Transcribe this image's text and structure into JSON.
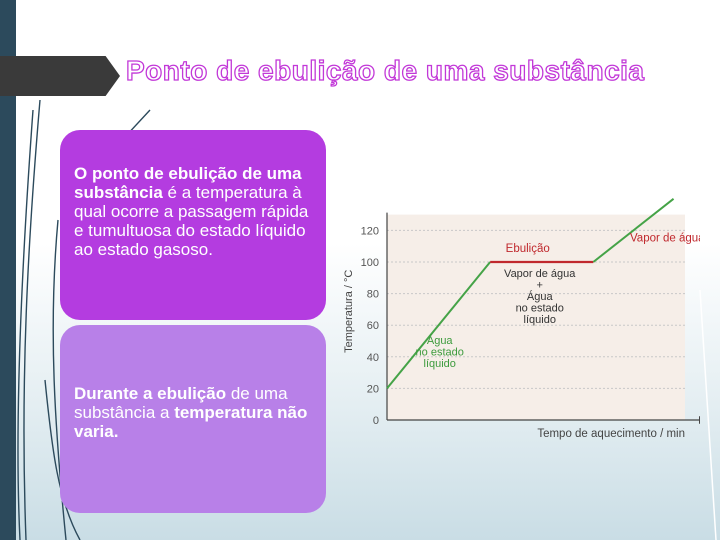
{
  "slide": {
    "title": "Ponto de ebulição de uma substância"
  },
  "box1": {
    "lead": "O ponto de ebulição de uma substância",
    "rest": " é a temperatura à qual ocorre a passagem rápida e tumultuosa do estado líquido ao estado gasoso."
  },
  "box2": {
    "part1": "Durante a ",
    "part2": "ebulição",
    "part3": " de uma substância a ",
    "part4": "temperatura não varia."
  },
  "colors": {
    "title_outline": "#c238d8",
    "box1_bg": "#b43ce0",
    "box2_bg": "#b880e8",
    "curve": "#45a347",
    "plateau": "#c0282d",
    "label_green": "#3d9b3d",
    "label_red": "#c0282d",
    "chart_bg": "#f6eee8"
  },
  "chart_data": {
    "type": "line",
    "ylabel": "Temperatura / °C",
    "xlabel": "Tempo de aquecimento / min",
    "y_ticks": [
      0,
      20,
      40,
      60,
      80,
      100,
      120
    ],
    "ylim": [
      0,
      130
    ],
    "grid": true,
    "series": [
      {
        "values": [
          [
            0,
            20
          ],
          [
            4.5,
            100
          ],
          [
            9,
            100
          ],
          [
            12.5,
            140
          ]
        ]
      }
    ],
    "annotations": {
      "ebulicao": "Ebulição",
      "vapor": "Vapor de água",
      "plateau_l1": "Vapor de água",
      "plateau_l2": "+",
      "plateau_l3": "Água",
      "plateau_l4": "no estado",
      "plateau_l5": "líquido",
      "liquid_l1": "Água",
      "liquid_l2": "no estado",
      "liquid_l3": "líquido"
    }
  }
}
